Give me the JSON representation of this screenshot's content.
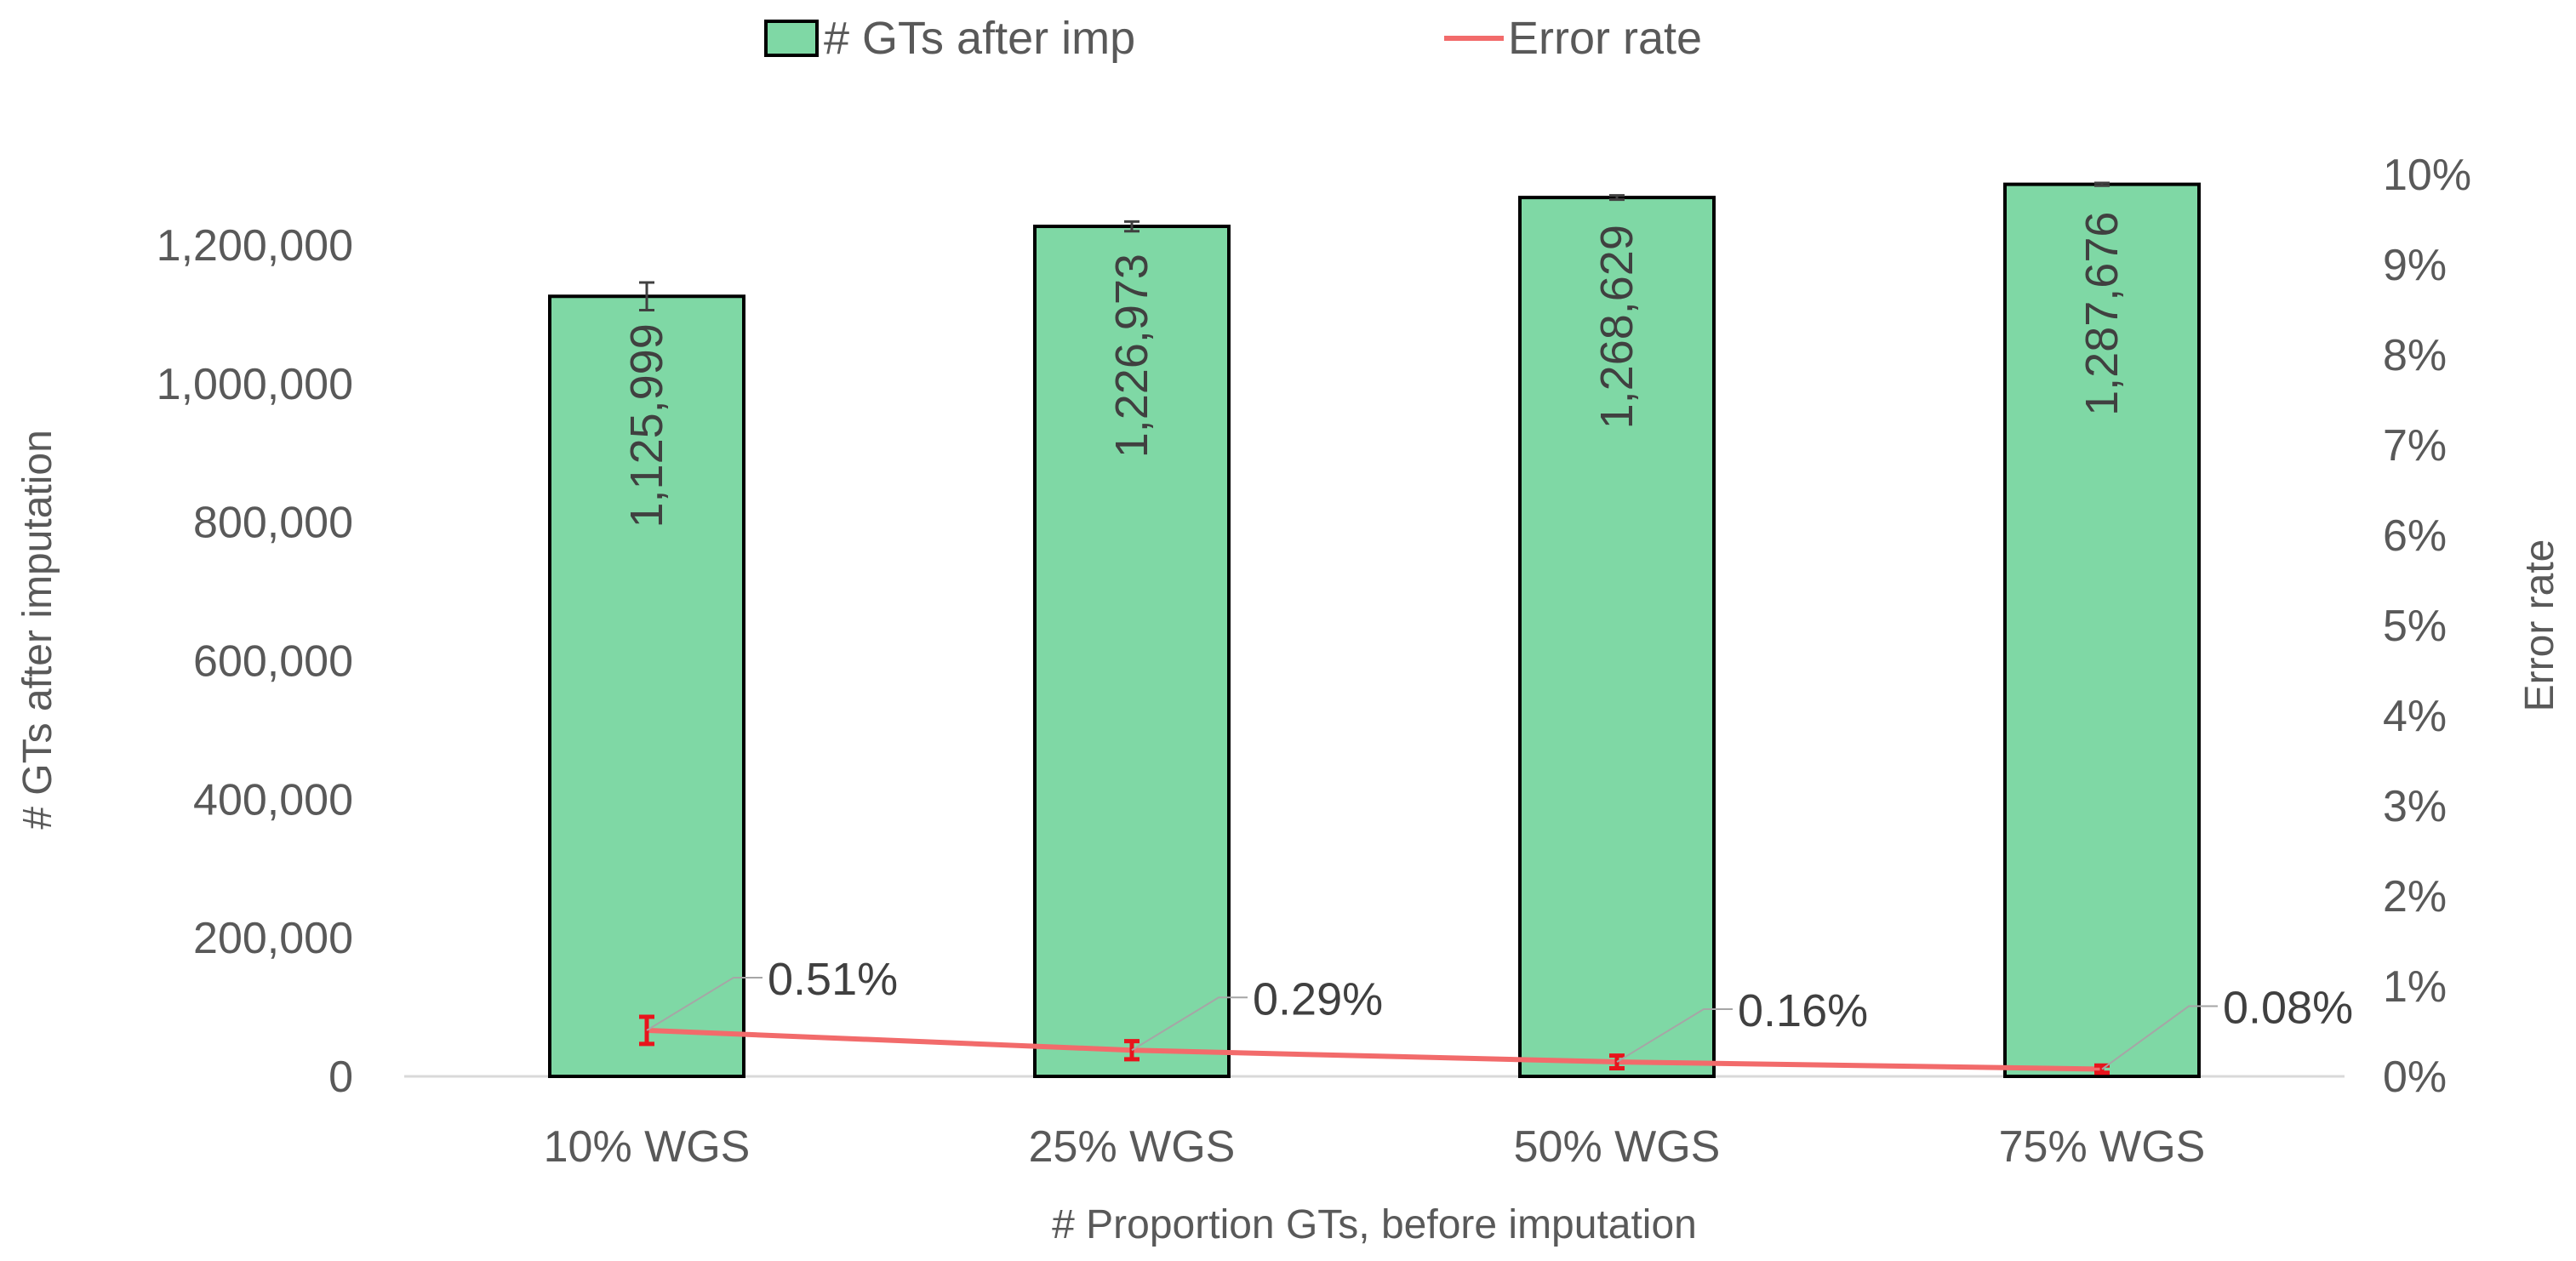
{
  "chart_data": {
    "type": "bar",
    "categories": [
      "10% WGS",
      "25% WGS",
      "50% WGS",
      "75% WGS"
    ],
    "series": [
      {
        "name": "# GTs after imp",
        "type": "bar",
        "axis": "left",
        "values": [
          1125999,
          1226973,
          1268629,
          1287676
        ],
        "value_labels": [
          "1,125,999",
          "1,226,973",
          "1,268,629",
          "1,287,676"
        ],
        "error_plusminus": [
          20000,
          7000,
          3000,
          2000
        ],
        "color": "#7fd8a5",
        "edge_color": "#000000"
      },
      {
        "name": "Error rate",
        "type": "line",
        "axis": "right",
        "values": [
          0.51,
          0.29,
          0.16,
          0.08
        ],
        "value_labels": [
          "0.51%",
          "0.29%",
          "0.16%",
          "0.08%"
        ],
        "error_plusminus": [
          0.15,
          0.1,
          0.07,
          0.04
        ],
        "color": "#f26b6b",
        "error_color": "#e8141c"
      }
    ],
    "xlabel": "# Proportion GTs, before imputation",
    "ylabel": "# GTs after imputation",
    "y2label": "Error rate",
    "ylim": [
      0,
      1300000
    ],
    "y2lim": [
      0,
      10
    ],
    "yticks": [
      "0",
      "200,000",
      "400,000",
      "600,000",
      "800,000",
      "1,000,000",
      "1,200,000"
    ],
    "y2ticks": [
      "0%",
      "1%",
      "2%",
      "3%",
      "4%",
      "5%",
      "6%",
      "7%",
      "8%",
      "9%",
      "10%"
    ],
    "legend": [
      {
        "label": "# GTs after imp",
        "kind": "bar"
      },
      {
        "label": "Error rate",
        "kind": "line"
      }
    ],
    "legend_position": "top-center",
    "grid": false
  }
}
